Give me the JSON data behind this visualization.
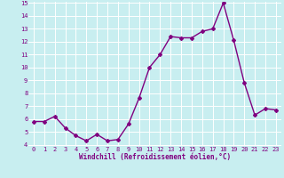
{
  "x": [
    0,
    1,
    2,
    3,
    4,
    5,
    6,
    7,
    8,
    9,
    10,
    11,
    12,
    13,
    14,
    15,
    16,
    17,
    18,
    19,
    20,
    21,
    22,
    23
  ],
  "y": [
    5.8,
    5.8,
    6.2,
    5.3,
    4.7,
    4.3,
    4.8,
    4.3,
    4.4,
    5.6,
    7.6,
    10.0,
    11.0,
    12.4,
    12.3,
    12.3,
    12.8,
    13.0,
    15.0,
    12.1,
    8.8,
    6.3,
    6.8,
    6.7
  ],
  "line_color": "#800080",
  "marker": "D",
  "marker_size": 2.0,
  "bg_color": "#c8eef0",
  "grid_color": "#ffffff",
  "xlabel": "Windchill (Refroidissement éolien,°C)",
  "xlabel_color": "#800080",
  "tick_color": "#800080",
  "ylim": [
    4,
    15
  ],
  "xlim": [
    -0.5,
    23.5
  ],
  "yticks": [
    4,
    5,
    6,
    7,
    8,
    9,
    10,
    11,
    12,
    13,
    14,
    15
  ],
  "xticks": [
    0,
    1,
    2,
    3,
    4,
    5,
    6,
    7,
    8,
    9,
    10,
    11,
    12,
    13,
    14,
    15,
    16,
    17,
    18,
    19,
    20,
    21,
    22,
    23
  ],
  "linewidth": 1.0,
  "tick_fontsize": 5.0,
  "xlabel_fontsize": 5.5,
  "font_family": "monospace"
}
